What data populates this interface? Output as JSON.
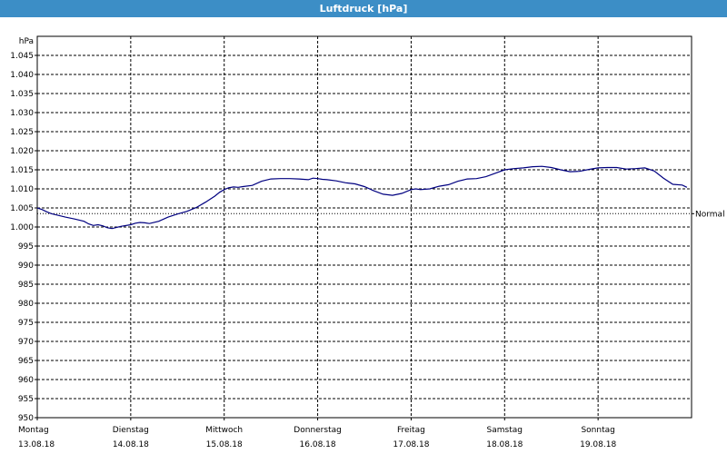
{
  "window": {
    "title": "Luftdruck [hPa]"
  },
  "chart_data": {
    "type": "line",
    "title": "Luftdruck [hPa]",
    "ylabel": "hPa",
    "ylim": [
      950,
      1050
    ],
    "yticks": [
      "950",
      "955",
      "960",
      "965",
      "970",
      "975",
      "980",
      "985",
      "990",
      "995",
      "1.000",
      "1.005",
      "1.010",
      "1.015",
      "1.020",
      "1.025",
      "1.030",
      "1.035",
      "1.040",
      "1.045"
    ],
    "xlim": [
      0,
      7
    ],
    "days": [
      {
        "name": "Montag",
        "date": "13.08.18"
      },
      {
        "name": "Dienstag",
        "date": "14.08.18"
      },
      {
        "name": "Mittwoch",
        "date": "15.08.18"
      },
      {
        "name": "Donnerstag",
        "date": "16.08.18"
      },
      {
        "name": "Freitag",
        "date": "17.08.18"
      },
      {
        "name": "Samstag",
        "date": "18.08.18"
      },
      {
        "name": "Sonntag",
        "date": "19.08.18"
      }
    ],
    "grid": true,
    "reference_line": {
      "label": "Normal",
      "value": 1003.5
    },
    "series": [
      {
        "color": "#000080",
        "x": [
          0,
          0.05,
          0.1,
          0.15,
          0.2,
          0.3,
          0.4,
          0.5,
          0.55,
          0.6,
          0.65,
          0.7,
          0.75,
          0.8,
          0.9,
          1.0,
          1.05,
          1.1,
          1.15,
          1.2,
          1.3,
          1.4,
          1.5,
          1.6,
          1.7,
          1.8,
          1.9,
          1.95,
          2.0,
          2.05,
          2.1,
          2.15,
          2.2,
          2.3,
          2.4,
          2.5,
          2.6,
          2.7,
          2.8,
          2.9,
          2.95,
          3.0,
          3.05,
          3.1,
          3.2,
          3.3,
          3.4,
          3.5,
          3.6,
          3.7,
          3.8,
          3.9,
          4.0,
          4.05,
          4.1,
          4.2,
          4.3,
          4.4,
          4.5,
          4.6,
          4.7,
          4.8,
          4.9,
          5.0,
          5.1,
          5.2,
          5.3,
          5.4,
          5.5,
          5.6,
          5.7,
          5.8,
          5.9,
          6.0,
          6.1,
          6.2,
          6.3,
          6.4,
          6.5,
          6.6,
          6.7,
          6.8,
          6.9,
          6.95
        ],
        "y": [
          1005,
          1004.6,
          1004,
          1003.5,
          1003.2,
          1002.6,
          1002.1,
          1001.5,
          1000.8,
          1000.4,
          1000.6,
          1000.3,
          999.8,
          999.6,
          1000.2,
          1000.6,
          1001,
          1001.2,
          1001.1,
          1000.9,
          1001.5,
          1002.6,
          1003.4,
          1004.1,
          1005.1,
          1006.5,
          1008.1,
          1009.1,
          1009.8,
          1010.3,
          1010.5,
          1010.4,
          1010.6,
          1010.9,
          1012,
          1012.6,
          1012.7,
          1012.7,
          1012.6,
          1012.4,
          1012.8,
          1012.7,
          1012.5,
          1012.4,
          1012.1,
          1011.6,
          1011.3,
          1010.6,
          1009.5,
          1008.6,
          1008.3,
          1008.8,
          1009.8,
          1010,
          1009.8,
          1010,
          1010.7,
          1011.1,
          1012,
          1012.6,
          1012.7,
          1013.2,
          1014.1,
          1015,
          1015.3,
          1015.5,
          1015.8,
          1015.9,
          1015.6,
          1015,
          1014.5,
          1014.6,
          1015.1,
          1015.5,
          1015.6,
          1015.6,
          1015.2,
          1015.3,
          1015.5,
          1014.7,
          1012.8,
          1011.2,
          1011,
          1010.4
        ]
      }
    ]
  }
}
